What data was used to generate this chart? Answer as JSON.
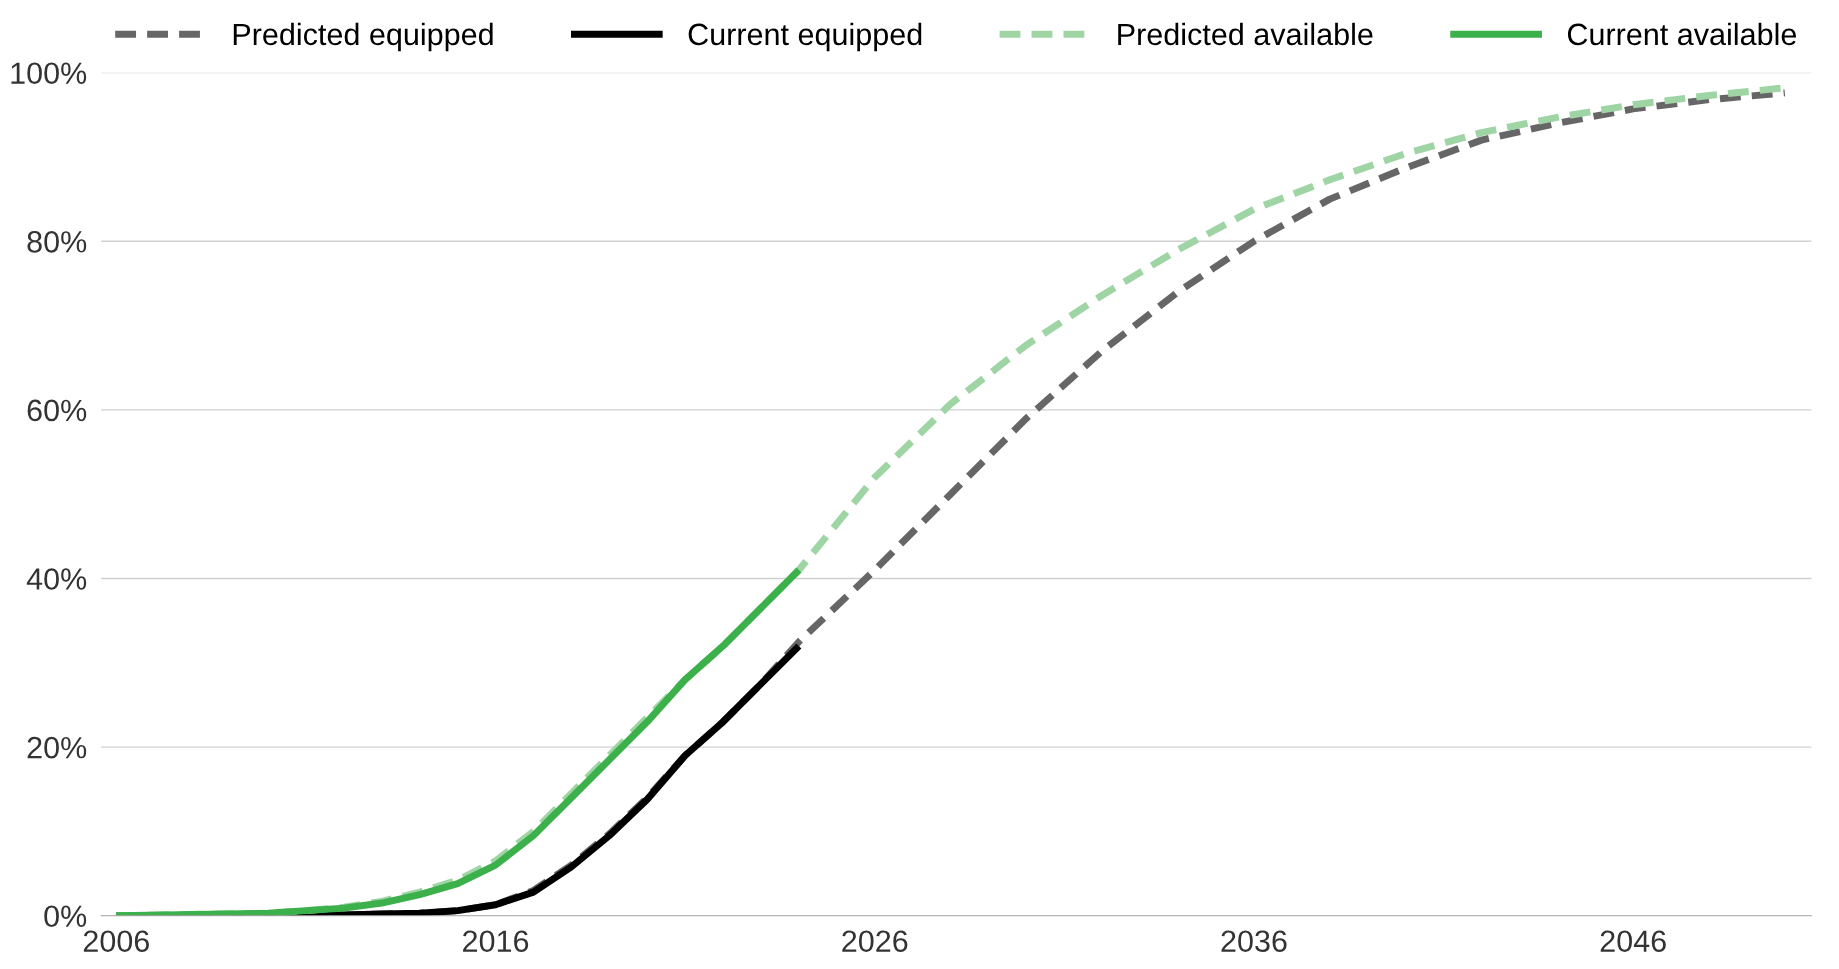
{
  "chart_data": {
    "type": "line",
    "series": [
      {
        "name": "Predicted equipped",
        "color": "#666666",
        "line_style": "dashed",
        "x": [
          2006,
          2010,
          2012,
          2013,
          2014,
          2015,
          2016,
          2017,
          2018,
          2019,
          2020,
          2021,
          2022,
          2023,
          2024,
          2026,
          2028,
          2030,
          2032,
          2034,
          2036,
          2038,
          2040,
          2042,
          2044,
          2046,
          2048,
          2050
        ],
        "values": [
          0,
          0,
          0.1,
          0.2,
          0.3,
          0.6,
          1.3,
          3,
          6,
          9.7,
          14,
          19,
          23,
          27.5,
          32.5,
          41,
          50,
          59,
          67,
          74,
          80,
          85,
          88.7,
          92,
          94,
          95.7,
          96.8,
          97.6
        ]
      },
      {
        "name": "Current equipped",
        "color": "#000000",
        "line_style": "solid",
        "x": [
          2006,
          2010,
          2012,
          2013,
          2014,
          2015,
          2016,
          2017,
          2018,
          2019,
          2020,
          2021,
          2022,
          2023,
          2024
        ],
        "values": [
          0,
          0,
          0.1,
          0.2,
          0.3,
          0.6,
          1.3,
          2.8,
          5.8,
          9.5,
          13.8,
          19,
          23,
          27.5,
          32
        ]
      },
      {
        "name": "Predicted available",
        "color": "#9fd4a5",
        "line_style": "dashed",
        "x": [
          2006,
          2010,
          2011,
          2012,
          2013,
          2014,
          2015,
          2016,
          2017,
          2018,
          2019,
          2020,
          2021,
          2022,
          2023,
          2024,
          2026,
          2028,
          2030,
          2032,
          2034,
          2036,
          2038,
          2040,
          2042,
          2044,
          2046,
          2048,
          2050
        ],
        "values": [
          0,
          0.3,
          0.6,
          1,
          1.7,
          2.8,
          4.2,
          6.5,
          10,
          14.5,
          19,
          23.5,
          28,
          32,
          36.5,
          41,
          52,
          60.7,
          67.7,
          73.6,
          79,
          83.8,
          87.3,
          90.4,
          92.9,
          94.7,
          96.2,
          97.3,
          98.2
        ]
      },
      {
        "name": "Current available",
        "color": "#3cb04a",
        "line_style": "solid",
        "x": [
          2006,
          2010,
          2011,
          2012,
          2013,
          2014,
          2015,
          2016,
          2017,
          2018,
          2019,
          2020,
          2021,
          2022,
          2023,
          2024
        ],
        "values": [
          0,
          0.3,
          0.6,
          0.9,
          1.5,
          2.5,
          3.8,
          6,
          9.5,
          14,
          18.5,
          23,
          28,
          32,
          36.5,
          41
        ]
      }
    ],
    "xlim": [
      2005.6,
      2050.7
    ],
    "xticks": [
      2006,
      2016,
      2026,
      2036,
      2046
    ],
    "ylim": [
      0,
      100
    ],
    "yticks": [
      {
        "value": 0,
        "label": "0%"
      },
      {
        "value": 20,
        "label": "20%"
      },
      {
        "value": 40,
        "label": "40%"
      },
      {
        "value": 60,
        "label": "60%"
      },
      {
        "value": 80,
        "label": "80%"
      },
      {
        "value": 100,
        "label": "100%"
      }
    ],
    "grid": "y",
    "legend": "top",
    "marker": "none"
  }
}
